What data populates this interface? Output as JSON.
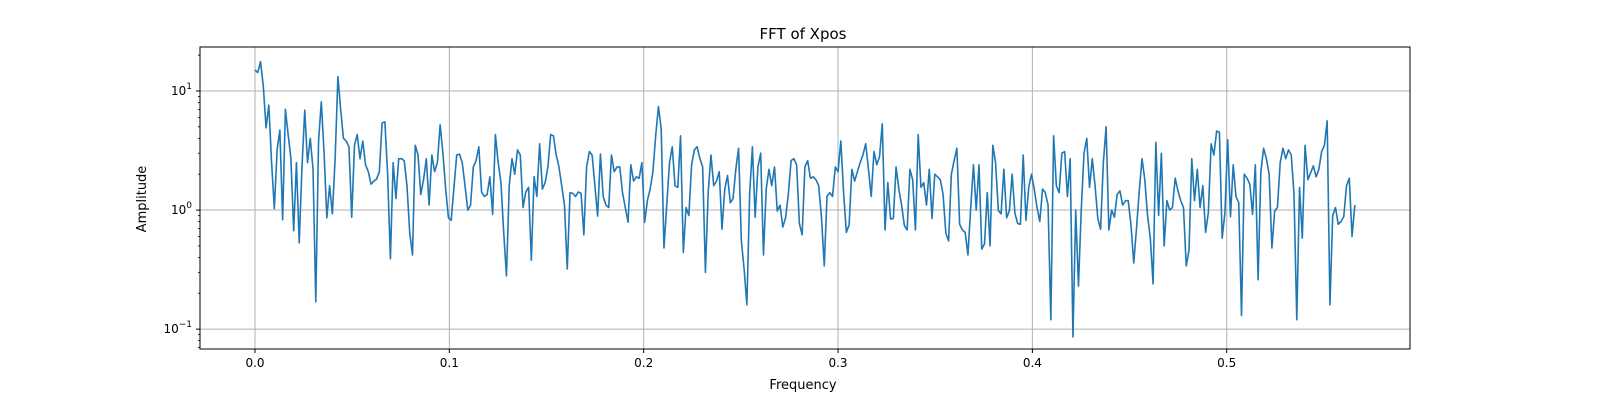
{
  "chart_data": {
    "type": "line",
    "title": "FFT of Xpos",
    "xlabel": "Frequency",
    "ylabel": "Amplitude",
    "xscale": "linear",
    "yscale": "log",
    "xlim": [
      -0.0283,
      0.5943
    ],
    "ylim": [
      0.0681,
      23.4
    ],
    "grid": true,
    "line_color": "#1f77b4",
    "grid_color": "#b0b0b0",
    "xticks": [
      {
        "value": 0.0,
        "label": "0.0"
      },
      {
        "value": 0.1,
        "label": "0.1"
      },
      {
        "value": 0.2,
        "label": "0.2"
      },
      {
        "value": 0.3,
        "label": "0.3"
      },
      {
        "value": 0.4,
        "label": "0.4"
      },
      {
        "value": 0.5,
        "label": "0.5"
      }
    ],
    "yticks": [
      {
        "value": 0.1,
        "base": "10",
        "exp": "−1"
      },
      {
        "value": 1,
        "base": "10",
        "exp": "0"
      },
      {
        "value": 10,
        "base": "10",
        "exp": "1"
      }
    ],
    "series": [
      {
        "x_start": 0.0,
        "x_end": 0.5659,
        "values": [
          15.0,
          14.3,
          17.6,
          11.0,
          4.9,
          7.6,
          2.5,
          1.03,
          3.2,
          4.7,
          0.83,
          7.0,
          4.3,
          2.7,
          0.67,
          2.5,
          0.53,
          2.3,
          6.9,
          2.5,
          4.0,
          2.2,
          0.17,
          3.8,
          8.1,
          3.0,
          0.86,
          1.6,
          0.93,
          2.7,
          13.2,
          7.0,
          4.0,
          3.8,
          3.4,
          0.87,
          3.5,
          4.3,
          2.7,
          3.8,
          2.4,
          2.1,
          1.65,
          1.75,
          1.82,
          2.1,
          5.4,
          5.5,
          2.0,
          0.39,
          2.5,
          1.25,
          2.7,
          2.7,
          2.6,
          1.6,
          0.64,
          0.42,
          3.5,
          2.9,
          1.35,
          1.8,
          2.7,
          1.1,
          2.9,
          2.1,
          2.5,
          5.2,
          3.0,
          1.5,
          0.86,
          0.82,
          1.55,
          2.9,
          2.95,
          2.5,
          1.6,
          1.0,
          1.1,
          2.3,
          2.6,
          3.4,
          1.42,
          1.3,
          1.35,
          1.9,
          0.92,
          4.3,
          2.5,
          1.7,
          0.65,
          0.28,
          1.6,
          2.7,
          2.0,
          3.2,
          2.9,
          1.05,
          1.42,
          1.55,
          0.38,
          1.9,
          1.3,
          3.6,
          1.5,
          1.7,
          2.3,
          4.3,
          4.2,
          2.9,
          2.3,
          1.6,
          1.1,
          0.32,
          1.4,
          1.38,
          1.3,
          1.42,
          1.38,
          0.62,
          2.3,
          3.1,
          2.9,
          1.6,
          0.89,
          2.95,
          1.3,
          1.1,
          1.05,
          2.9,
          2.1,
          2.3,
          2.3,
          1.4,
          1.05,
          0.79,
          2.4,
          1.75,
          1.9,
          1.85,
          2.5,
          0.79,
          1.2,
          1.5,
          2.1,
          4.2,
          7.4,
          4.8,
          0.48,
          1.1,
          2.5,
          3.4,
          1.6,
          1.55,
          4.2,
          0.44,
          1.05,
          0.9,
          2.4,
          3.2,
          3.4,
          2.7,
          2.3,
          0.3,
          1.4,
          2.9,
          1.6,
          1.75,
          2.1,
          0.69,
          1.5,
          1.95,
          1.15,
          1.25,
          2.2,
          3.3,
          0.55,
          0.32,
          0.16,
          1.35,
          3.4,
          0.87,
          2.3,
          3.0,
          0.42,
          1.5,
          2.2,
          1.6,
          2.3,
          0.98,
          1.1,
          0.72,
          0.86,
          1.35,
          2.6,
          2.7,
          2.4,
          0.77,
          0.62,
          2.3,
          2.6,
          1.85,
          1.9,
          1.8,
          1.6,
          0.87,
          0.34,
          1.3,
          1.4,
          1.3,
          2.3,
          2.1,
          3.8,
          1.4,
          0.65,
          0.75,
          2.2,
          1.75,
          2.1,
          2.5,
          2.9,
          3.6,
          2.2,
          1.3,
          3.1,
          2.4,
          2.8,
          5.3,
          0.68,
          1.7,
          0.84,
          0.85,
          2.3,
          1.5,
          1.1,
          0.74,
          0.68,
          2.2,
          1.8,
          0.68,
          4.3,
          1.55,
          1.7,
          1.1,
          2.2,
          0.85,
          2.0,
          1.9,
          1.8,
          1.35,
          0.64,
          0.55,
          2.0,
          2.6,
          3.3,
          0.76,
          0.68,
          0.65,
          0.42,
          1.05,
          2.4,
          1.0,
          2.4,
          0.47,
          0.52,
          1.4,
          0.5,
          3.5,
          2.5,
          0.99,
          0.93,
          2.2,
          0.86,
          0.99,
          2.0,
          0.94,
          0.77,
          0.76,
          2.9,
          0.82,
          1.55,
          2.0,
          1.5,
          1.05,
          0.8,
          1.5,
          1.4,
          1.1,
          0.12,
          4.2,
          1.6,
          1.4,
          3.0,
          3.1,
          1.3,
          2.7,
          0.086,
          1.0,
          0.23,
          1.0,
          3.0,
          4.0,
          1.55,
          2.7,
          1.6,
          0.85,
          0.69,
          2.5,
          5.0,
          0.68,
          1.0,
          0.87,
          1.35,
          1.45,
          1.1,
          1.2,
          1.2,
          0.75,
          0.36,
          0.7,
          1.45,
          2.7,
          1.8,
          0.9,
          0.58,
          0.24,
          3.7,
          0.9,
          3.0,
          0.5,
          1.2,
          1.0,
          1.05,
          1.85,
          1.45,
          1.2,
          1.05,
          0.34,
          0.46,
          2.7,
          1.2,
          2.2,
          1.05,
          1.6,
          0.65,
          0.95,
          3.6,
          2.9,
          4.6,
          4.5,
          0.58,
          0.95,
          3.9,
          0.88,
          2.4,
          1.3,
          1.15,
          0.13,
          2.0,
          1.85,
          1.65,
          0.92,
          2.4,
          0.26,
          2.1,
          3.3,
          2.7,
          2.0,
          0.48,
          0.98,
          1.05,
          2.5,
          3.3,
          2.7,
          3.2,
          2.9,
          1.35,
          0.12,
          1.55,
          0.58,
          3.5,
          1.8,
          2.05,
          2.35,
          1.9,
          2.2,
          3.1,
          3.5,
          5.6,
          0.16,
          0.9,
          1.05,
          0.76,
          0.8,
          0.88,
          1.6,
          1.85,
          0.6,
          1.1
        ]
      }
    ]
  }
}
